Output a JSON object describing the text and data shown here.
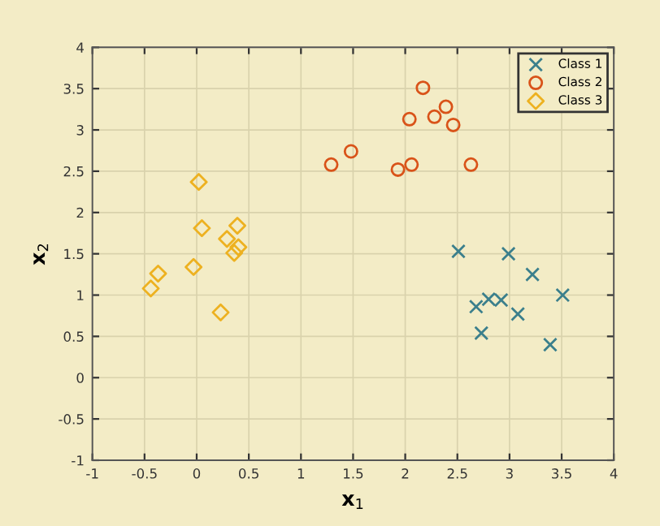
{
  "chart_data": {
    "type": "scatter",
    "xlabel": "x$_{1}$",
    "ylabel": "x$_{2}$",
    "xlim": [
      -1,
      4
    ],
    "ylim": [
      -1,
      4
    ],
    "xticks": [
      -1,
      -0.5,
      0,
      0.5,
      1,
      1.5,
      2,
      2.5,
      3,
      3.5,
      4
    ],
    "yticks": [
      -1,
      -0.5,
      0,
      0.5,
      1,
      1.5,
      2,
      2.5,
      3,
      3.5,
      4
    ],
    "grid": true,
    "legend": "top right",
    "series": [
      {
        "name": "Class 1",
        "color": "#3b7f8c",
        "marker": "cross",
        "x": [
          2.51,
          2.99,
          3.22,
          3.51,
          2.68,
          2.8,
          2.92,
          3.08,
          2.73,
          3.39
        ],
        "values": [
          1.53,
          1.5,
          1.25,
          1.0,
          0.86,
          0.95,
          0.94,
          0.77,
          0.54,
          0.4
        ]
      },
      {
        "name": "Class 2",
        "color": "#d95319",
        "marker": "circle",
        "x": [
          1.29,
          1.48,
          1.93,
          2.06,
          2.04,
          2.17,
          2.28,
          2.39,
          2.46,
          2.63
        ],
        "values": [
          2.58,
          2.74,
          2.52,
          2.58,
          3.13,
          3.51,
          3.16,
          3.28,
          3.06,
          2.58
        ]
      },
      {
        "name": "Class 3",
        "color": "#edb120",
        "marker": "diamond",
        "x": [
          -0.44,
          -0.37,
          -0.03,
          0.23,
          0.36,
          0.4,
          0.29,
          0.02,
          0.05,
          0.39
        ],
        "values": [
          1.08,
          1.26,
          1.34,
          0.79,
          1.51,
          1.58,
          1.68,
          2.37,
          1.81,
          1.84
        ]
      }
    ]
  }
}
